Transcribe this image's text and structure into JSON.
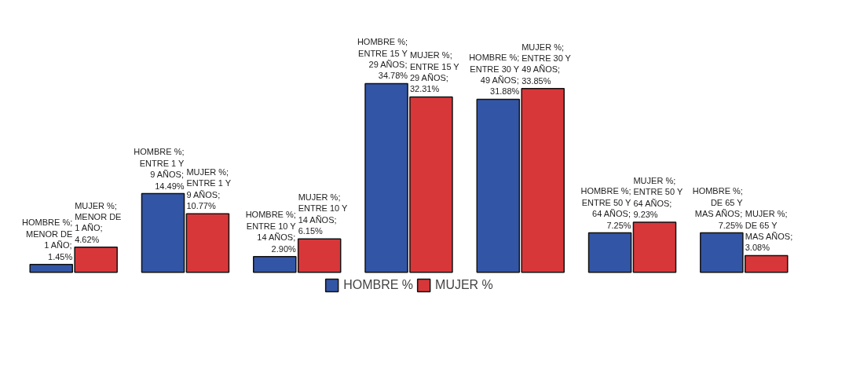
{
  "chart_data": {
    "type": "bar",
    "categories": [
      null,
      null,
      null,
      null,
      null,
      null,
      null
    ],
    "series": [
      {
        "name": "HOMBRE %",
        "color": "#3355a5",
        "values": [
          1.45,
          14.49,
          2.9,
          34.78,
          31.88,
          7.25,
          7.25
        ],
        "value_labels": [
          "HOMBRE %; MENOR DE 1 AÑO; 1.45%",
          "HOMBRE %; ENTRE 1 Y 9 AÑOS; 14.49%",
          "HOMBRE %; ENTRE 10 Y 14 AÑOS; 2.90%",
          "HOMBRE %; ENTRE 15 Y 29 AÑOS; 34.78%",
          "HOMBRE %; ENTRE 30 Y 49 AÑOS; 31.88%",
          "HOMBRE %; ENTRE 50 Y 64 AÑOS; 7.25%",
          "HOMBRE %; DE 65 Y MAS AÑOS; 7.25%"
        ]
      },
      {
        "name": "MUJER %",
        "color": "#d8373a",
        "values": [
          4.62,
          10.77,
          6.15,
          32.31,
          33.85,
          9.23,
          3.08
        ],
        "value_labels": [
          "MUJER %; MENOR DE 1 AÑO; 4.62%",
          "MUJER %; ENTRE 1 Y 9 AÑOS; 10.77%",
          "MUJER %; ENTRE 10 Y 14 AÑOS; 6.15%",
          "MUJER %; ENTRE 15 Y 29 AÑOS; 32.31%",
          "MUJER %; ENTRE 30 Y 49 AÑOS; 33.85%",
          "MUJER %; ENTRE 50 Y 64 AÑOS; 9.23%",
          "MUJER %; DE 65 Y MAS AÑOS; 3.08%"
        ]
      }
    ],
    "legend": "bottom"
  }
}
